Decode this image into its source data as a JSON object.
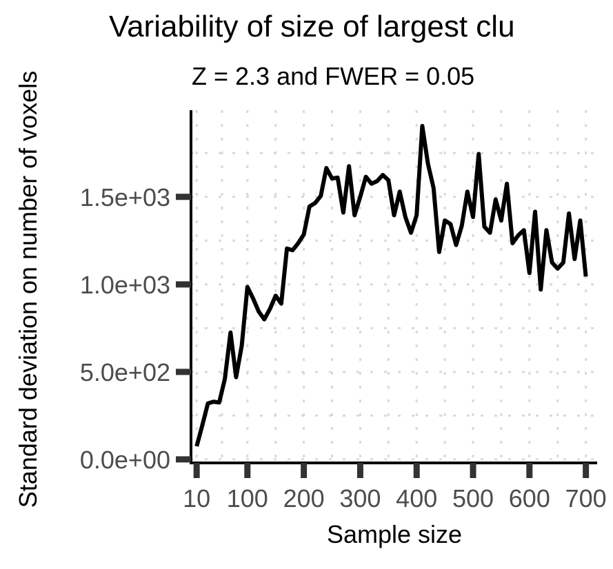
{
  "chart_data": {
    "type": "line",
    "title": "Variability of size of largest clu",
    "subtitle": "Z = 2.3 and FWER = 0.05",
    "xlabel": "Sample size",
    "ylabel": "Standard deviation on number of voxels",
    "x_tick_labels": [
      "10",
      "100",
      "200",
      "300",
      "400",
      "500",
      "600",
      "700"
    ],
    "y_tick_labels": [
      "0.0e+00",
      "5.0e+02",
      "1.0e+03",
      "1.5e+03"
    ],
    "x_ticks": [
      10,
      100,
      200,
      300,
      400,
      500,
      600,
      700
    ],
    "y_ticks": [
      0,
      500,
      1000,
      1500
    ],
    "xlim": [
      0,
      720
    ],
    "ylim": [
      -20,
      1995
    ],
    "grid": "dotted",
    "series": [
      {
        "color": "#000000",
        "x": [
          10,
          20,
          30,
          40,
          50,
          60,
          70,
          80,
          90,
          100,
          110,
          120,
          130,
          140,
          150,
          160,
          170,
          180,
          190,
          200,
          210,
          220,
          230,
          240,
          250,
          260,
          270,
          280,
          290,
          300,
          310,
          320,
          330,
          340,
          350,
          360,
          370,
          380,
          390,
          400,
          410,
          420,
          430,
          440,
          450,
          460,
          470,
          480,
          490,
          500,
          510,
          520,
          530,
          540,
          550,
          560,
          570,
          580,
          590,
          600,
          610,
          620,
          630,
          640,
          650,
          660,
          670,
          680,
          690,
          700
        ],
        "y": [
          75,
          195,
          320,
          330,
          325,
          460,
          725,
          470,
          650,
          985,
          920,
          845,
          800,
          860,
          935,
          890,
          1205,
          1195,
          1235,
          1285,
          1445,
          1465,
          1505,
          1665,
          1605,
          1610,
          1410,
          1675,
          1395,
          1500,
          1615,
          1575,
          1590,
          1625,
          1595,
          1395,
          1530,
          1385,
          1295,
          1395,
          1905,
          1690,
          1550,
          1185,
          1365,
          1345,
          1225,
          1335,
          1530,
          1385,
          1745,
          1330,
          1295,
          1485,
          1365,
          1575,
          1235,
          1280,
          1310,
          1065,
          1415,
          970,
          1310,
          1125,
          1090,
          1125,
          1405,
          1145,
          1365,
          1045
        ]
      }
    ]
  }
}
